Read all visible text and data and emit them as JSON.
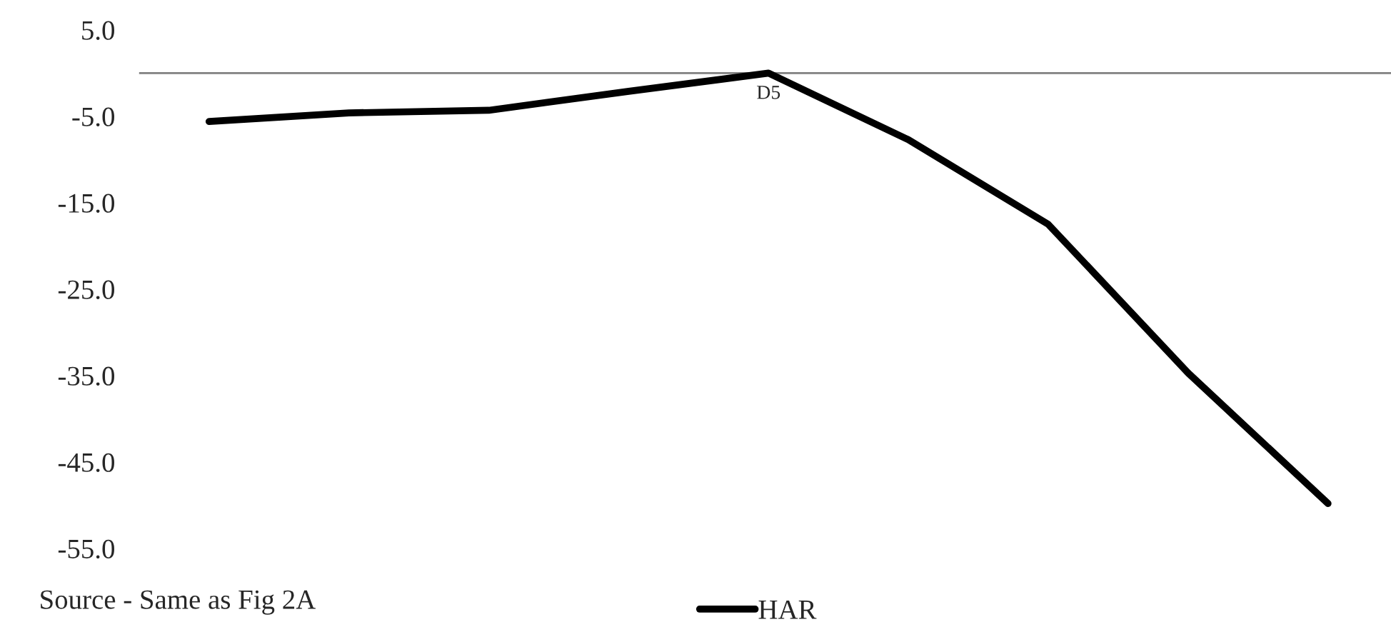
{
  "chart_data": {
    "type": "line",
    "categories": [
      null,
      null,
      null,
      null,
      "D5",
      null,
      null,
      null,
      null
    ],
    "series": [
      {
        "name": "HAR",
        "color": "#000000",
        "values": [
          -5.6,
          -4.6,
          -4.3,
          -2.1,
          0,
          -7.7,
          -17.5,
          -34.7,
          -49.8
        ]
      }
    ],
    "ylim": [
      -55,
      5
    ],
    "yticks": [
      {
        "value": 5,
        "label": "5.0"
      },
      {
        "value": -5,
        "label": "-5.0"
      },
      {
        "value": -15,
        "label": "-15.0"
      },
      {
        "value": -25,
        "label": "-25.0"
      },
      {
        "value": -35,
        "label": "-35.0"
      },
      {
        "value": -45,
        "label": "-45.0"
      },
      {
        "value": -55,
        "label": "-55.0"
      }
    ],
    "ref_lines": [
      {
        "axis": "y",
        "value": 0,
        "color": "#808080"
      }
    ],
    "annotations": [
      "Source - Same as Fig 2A"
    ],
    "legend": "bottom",
    "grid": false,
    "marker": "none",
    "line_style": "solid"
  }
}
